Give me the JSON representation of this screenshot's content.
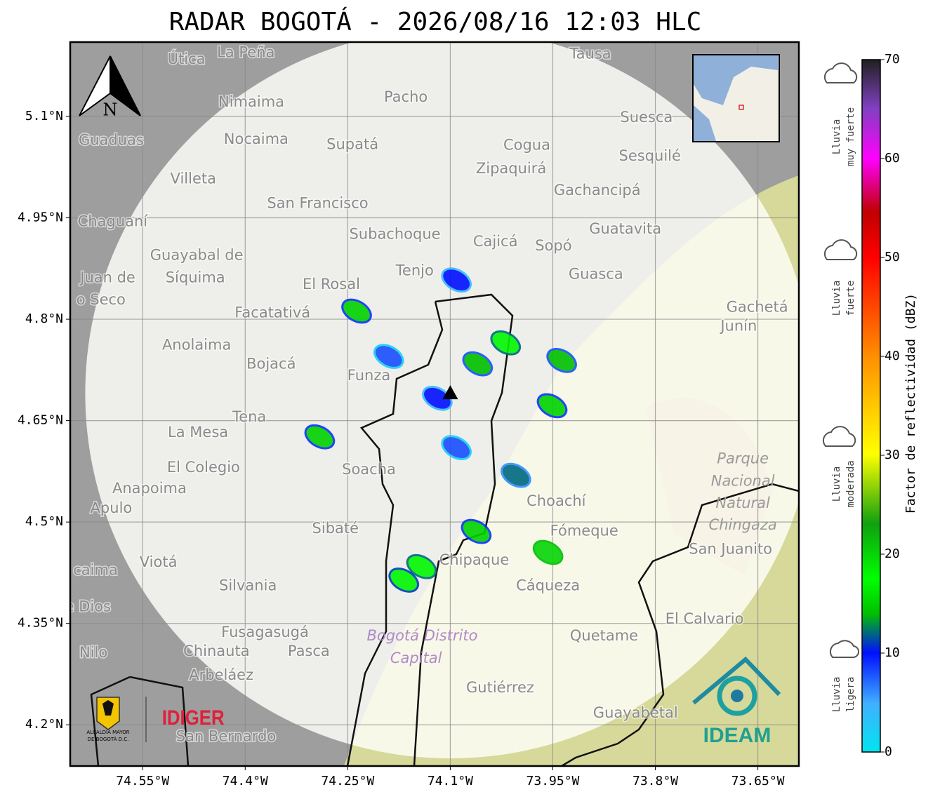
{
  "title": "RADAR BOGOTÁ - 2026/08/16 12:03 HLC",
  "map": {
    "xlim": [
      -74.656,
      -73.59
    ],
    "ylim": [
      4.139,
      5.21
    ],
    "xticks": [
      {
        "value": -74.55,
        "label": "74.55°W"
      },
      {
        "value": -74.4,
        "label": "74.4°W"
      },
      {
        "value": -74.25,
        "label": "74.25°W"
      },
      {
        "value": -74.1,
        "label": "74.1°W"
      },
      {
        "value": -73.95,
        "label": "73.95°W"
      },
      {
        "value": -73.8,
        "label": "73.8°W"
      },
      {
        "value": -73.65,
        "label": "73.65°W"
      }
    ],
    "yticks": [
      {
        "value": 5.1,
        "label": "5.1°N"
      },
      {
        "value": 4.95,
        "label": "4.95°N"
      },
      {
        "value": 4.8,
        "label": "4.8°N"
      },
      {
        "value": 4.65,
        "label": "4.65°N"
      },
      {
        "value": 4.5,
        "label": "4.5°N"
      },
      {
        "value": 4.35,
        "label": "4.35°N"
      },
      {
        "value": 4.2,
        "label": "4.2°N"
      }
    ],
    "grid": true,
    "north_label": "N",
    "radar_site": {
      "lon": -74.1,
      "lat": 4.69
    },
    "places": [
      {
        "label": "Útica",
        "lon": -74.486,
        "lat": 5.184
      },
      {
        "label": "La Peña",
        "lon": -74.399,
        "lat": 5.194
      },
      {
        "label": "Tausa",
        "lon": -73.895,
        "lat": 5.192
      },
      {
        "label": "Pacho",
        "lon": -74.165,
        "lat": 5.128
      },
      {
        "label": "Nimaima",
        "lon": -74.391,
        "lat": 5.121
      },
      {
        "label": "Guaduas",
        "lon": -74.596,
        "lat": 5.064
      },
      {
        "label": "Nocaima",
        "lon": -74.384,
        "lat": 5.066
      },
      {
        "label": "Supatá",
        "lon": -74.243,
        "lat": 5.058
      },
      {
        "label": "Cogua",
        "lon": -73.988,
        "lat": 5.057
      },
      {
        "label": "Suesca",
        "lon": -73.813,
        "lat": 5.098
      },
      {
        "label": "Sesquilé",
        "lon": -73.808,
        "lat": 5.041
      },
      {
        "label": "Zipaquirá",
        "lon": -74.011,
        "lat": 5.022
      },
      {
        "label": "Villeta",
        "lon": -74.476,
        "lat": 5.007
      },
      {
        "label": "Gachancipá",
        "lon": -73.885,
        "lat": 4.99
      },
      {
        "label": "San Francisco",
        "lon": -74.294,
        "lat": 4.971
      },
      {
        "label": "Chaguaní",
        "lon": -74.594,
        "lat": 4.944
      },
      {
        "label": "Guatavita",
        "lon": -73.844,
        "lat": 4.933
      },
      {
        "label": "Subachoque",
        "lon": -74.181,
        "lat": 4.925
      },
      {
        "label": "Cajicá",
        "lon": -74.034,
        "lat": 4.914
      },
      {
        "label": "Sopó",
        "lon": -73.949,
        "lat": 4.908
      },
      {
        "label": "Guayabal de",
        "lon": -74.471,
        "lat": 4.894
      },
      {
        "label": "Síquima",
        "lon": -74.473,
        "lat": 4.861
      },
      {
        "label": "Tenjo",
        "lon": -74.152,
        "lat": 4.871
      },
      {
        "label": "Guasca",
        "lon": -73.887,
        "lat": 4.866
      },
      {
        "label": "Juan de",
        "lon": -74.601,
        "lat": 4.861
      },
      {
        "label": "o Seco",
        "lon": -74.611,
        "lat": 4.828
      },
      {
        "label": "El Rosal",
        "lon": -74.274,
        "lat": 4.851
      },
      {
        "label": "Facatativá",
        "lon": -74.36,
        "lat": 4.809
      },
      {
        "label": "Gachetá",
        "lon": -73.651,
        "lat": 4.817
      },
      {
        "label": "Junín",
        "lon": -73.678,
        "lat": 4.789
      },
      {
        "label": "Anolaima",
        "lon": -74.471,
        "lat": 4.761
      },
      {
        "label": "Bojacá",
        "lon": -74.362,
        "lat": 4.733
      },
      {
        "label": "Funza",
        "lon": -74.219,
        "lat": 4.716
      },
      {
        "label": "Tena",
        "lon": -74.394,
        "lat": 4.655
      },
      {
        "label": "La Mesa",
        "lon": -74.469,
        "lat": 4.632
      },
      {
        "label": "El Colegio",
        "lon": -74.461,
        "lat": 4.58
      },
      {
        "label": "Soacha",
        "lon": -74.219,
        "lat": 4.577
      },
      {
        "label": "Anapoima",
        "lon": -74.54,
        "lat": 4.549
      },
      {
        "label": "Apulo",
        "lon": -74.596,
        "lat": 4.52
      },
      {
        "label": "Choachí",
        "lon": -73.945,
        "lat": 4.53
      },
      {
        "label": "San Juanito",
        "lon": -73.69,
        "lat": 4.459
      },
      {
        "label": "Sibaté",
        "lon": -74.268,
        "lat": 4.49
      },
      {
        "label": "Fómeque",
        "lon": -73.904,
        "lat": 4.486
      },
      {
        "label": "caima",
        "lon": -74.619,
        "lat": 4.428
      },
      {
        "label": "Viotá",
        "lon": -74.527,
        "lat": 4.44
      },
      {
        "label": "Chipaque",
        "lon": -74.065,
        "lat": 4.443
      },
      {
        "label": "Silvania",
        "lon": -74.396,
        "lat": 4.405
      },
      {
        "label": "Cáqueza",
        "lon": -73.957,
        "lat": 4.405
      },
      {
        "label": "e Dios",
        "lon": -74.63,
        "lat": 4.374
      },
      {
        "label": "El Calvario",
        "lon": -73.728,
        "lat": 4.356
      },
      {
        "label": "Fusagasugá",
        "lon": -74.371,
        "lat": 4.336
      },
      {
        "label": "Quetame",
        "lon": -73.875,
        "lat": 4.331
      },
      {
        "label": "Nilo",
        "lon": -74.622,
        "lat": 4.306
      },
      {
        "label": "Chinauta",
        "lon": -74.442,
        "lat": 4.308
      },
      {
        "label": "Pasca",
        "lon": -74.307,
        "lat": 4.308
      },
      {
        "label": "Arbeláez",
        "lon": -74.435,
        "lat": 4.273
      },
      {
        "label": "Gutiérrez",
        "lon": -74.027,
        "lat": 4.254
      },
      {
        "label": "Guayabetal",
        "lon": -73.829,
        "lat": 4.217
      },
      {
        "label": "San Bernardo",
        "lon": -74.428,
        "lat": 4.182
      }
    ],
    "areas": [
      {
        "label": "Parque",
        "lon": -73.672,
        "lat": 4.593
      },
      {
        "label": "Nacional",
        "lon": -73.672,
        "lat": 4.56
      },
      {
        "label": "Natural",
        "lon": -73.672,
        "lat": 4.527
      },
      {
        "label": "Chingaza",
        "lon": -73.672,
        "lat": 4.495
      },
      {
        "label": "Bogotá Distrito",
        "lon": -74.141,
        "lat": 4.331
      },
      {
        "label": "Capital",
        "lon": -74.15,
        "lat": 4.298
      }
    ],
    "echoes": [
      {
        "lon": -74.237,
        "lat": 4.812,
        "dbz": 15
      },
      {
        "lon": -74.091,
        "lat": 4.858,
        "dbz": 10
      },
      {
        "lon": -74.019,
        "lat": 4.765,
        "dbz": 18
      },
      {
        "lon": -74.19,
        "lat": 4.745,
        "dbz": 8
      },
      {
        "lon": -74.06,
        "lat": 4.734,
        "dbz": 14
      },
      {
        "lon": -74.119,
        "lat": 4.683,
        "dbz": 10
      },
      {
        "lon": -73.951,
        "lat": 4.672,
        "dbz": 15
      },
      {
        "lon": -74.291,
        "lat": 4.626,
        "dbz": 15
      },
      {
        "lon": -74.091,
        "lat": 4.61,
        "dbz": 8
      },
      {
        "lon": -74.004,
        "lat": 4.569,
        "dbz": 12
      },
      {
        "lon": -73.957,
        "lat": 4.455,
        "dbz": 20
      },
      {
        "lon": -74.142,
        "lat": 4.434,
        "dbz": 18
      },
      {
        "lon": -74.168,
        "lat": 4.414,
        "dbz": 17
      },
      {
        "lon": -73.937,
        "lat": 4.739,
        "dbz": 14
      },
      {
        "lon": -74.062,
        "lat": 4.486,
        "dbz": 15
      }
    ]
  },
  "colorbar": {
    "label": "Factor de reflectividad (dBZ)",
    "lim": [
      0,
      70
    ],
    "ticks": [
      0,
      10,
      20,
      30,
      40,
      50,
      60,
      70
    ],
    "categories": [
      {
        "lines": [
          "Lluvia",
          "muy fuerte"
        ]
      },
      {
        "lines": [
          "Lluvia",
          "fuerte"
        ]
      },
      {
        "lines": [
          "Lluvia",
          "moderada"
        ]
      },
      {
        "lines": [
          "Lluvia",
          "ligera"
        ]
      }
    ]
  },
  "logos": {
    "alcaldia": [
      "ALCALDÍA MAYOR",
      "DE BOGOTÁ D.C."
    ],
    "idiger": "IDIGER",
    "ideam": "IDEAM"
  }
}
